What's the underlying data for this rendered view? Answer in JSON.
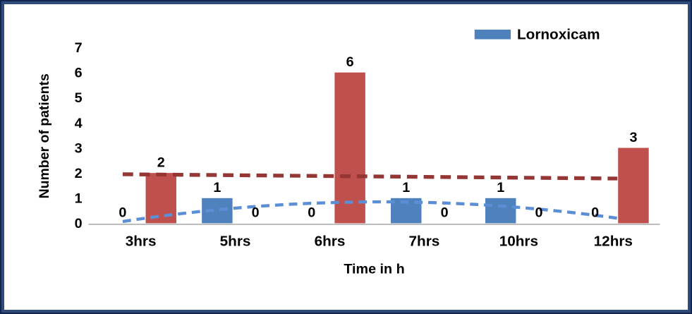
{
  "frame": {
    "outer_border_color": "#13254c",
    "inner_border_color": "#2e4b7c",
    "background": "#ffffff"
  },
  "chart_data": {
    "type": "bar",
    "title": "",
    "categories": [
      "3hrs",
      "5hrs",
      "6hrs",
      "7hrs",
      "10hrs",
      "12hrs"
    ],
    "series": [
      {
        "name": "Lornoxicam",
        "color": "#4f81bd",
        "values": [
          0,
          1,
          0,
          1,
          1,
          0
        ],
        "in_legend": true
      },
      {
        "name": "",
        "color": "#c0504d",
        "values": [
          2,
          0,
          6,
          0,
          0,
          3
        ],
        "in_legend": false
      }
    ],
    "trendlines": [
      {
        "series_index": 1,
        "shape": "linear",
        "color": "#943634",
        "stroke_width": 5.5,
        "dash_pattern": "15 9",
        "start_value": 1.95,
        "end_value": 1.78
      },
      {
        "series_index": 0,
        "shape": "quadratic",
        "color": "#5b8ed5",
        "stroke_width": 4.5,
        "dash_pattern": "12 8",
        "start_value": 0.07,
        "peak_value": 0.85,
        "end_value": 0.2
      }
    ],
    "xlabel": "Time in h",
    "ylabel": "Number of patients",
    "ylim": [
      0,
      7
    ],
    "ytick_step": 1,
    "grid": false,
    "data_labels": true,
    "legend_position": "top-right",
    "axis_line_color": "#a6a6a6",
    "text_color": "#000000"
  }
}
